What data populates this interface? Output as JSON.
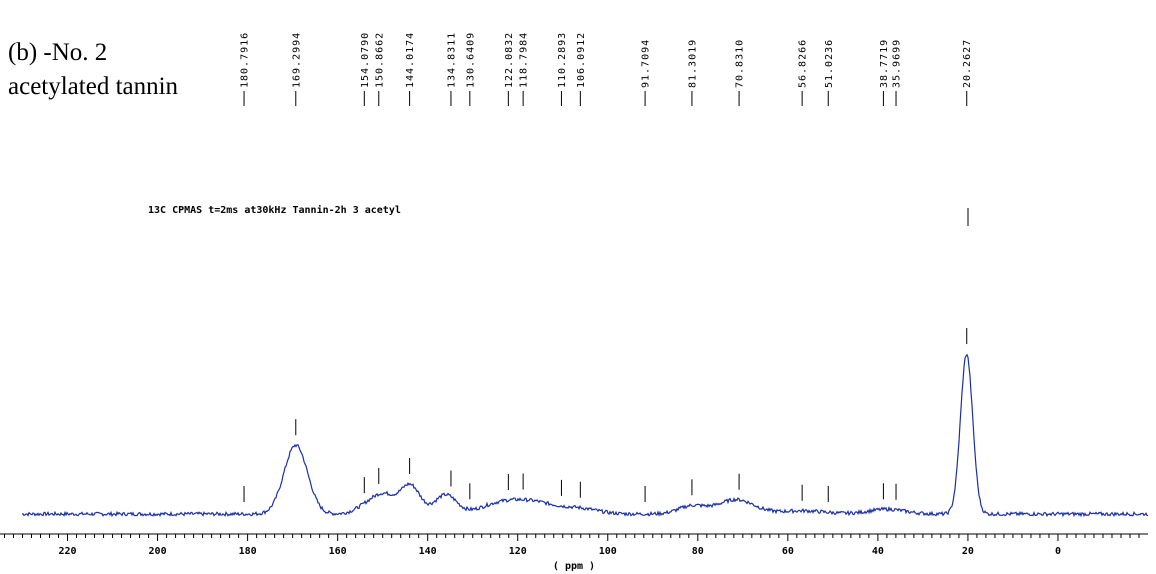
{
  "figure": {
    "caption_line1": "(b) -No. 2",
    "caption_line2": "acetylated tannin"
  },
  "chart_data": {
    "type": "line",
    "title": "13C CPMAS t=2ms at30kHz Tannin-2h 3 acetyl",
    "xlabel": "( ppm )",
    "ylabel": "",
    "xlim": [
      235,
      -20
    ],
    "x_reversed": true,
    "ylim": [
      0,
      1
    ],
    "grid": false,
    "line_color": "#1b2fa8",
    "x_ticks": [
      220,
      200,
      180,
      160,
      140,
      120,
      100,
      80,
      60,
      40,
      20,
      0
    ],
    "x_tick_labels": [
      "220",
      "200",
      "180",
      "160",
      "140",
      "120",
      "100",
      "80",
      "60",
      "40",
      "20",
      "0"
    ],
    "peak_labels": [
      {
        "ppm": 180.7916,
        "label": "180.7916"
      },
      {
        "ppm": 169.2994,
        "label": "169.2994"
      },
      {
        "ppm": 154.079,
        "label": "154.0790"
      },
      {
        "ppm": 150.8662,
        "label": "150.8662"
      },
      {
        "ppm": 144.0174,
        "label": "144.0174"
      },
      {
        "ppm": 134.8311,
        "label": "134.8311"
      },
      {
        "ppm": 130.6409,
        "label": "130.6409"
      },
      {
        "ppm": 122.0832,
        "label": "122.0832"
      },
      {
        "ppm": 118.7984,
        "label": "118.7984"
      },
      {
        "ppm": 110.2893,
        "label": "110.2893"
      },
      {
        "ppm": 106.0912,
        "label": "106.0912"
      },
      {
        "ppm": 91.7094,
        "label": "91.7094"
      },
      {
        "ppm": 81.3019,
        "label": "81.3019"
      },
      {
        "ppm": 70.831,
        "label": "70.8310"
      },
      {
        "ppm": 56.8266,
        "label": "56.8266"
      },
      {
        "ppm": 51.0236,
        "label": "51.0236"
      },
      {
        "ppm": 38.7719,
        "label": "38.7719"
      },
      {
        "ppm": 35.9699,
        "label": "35.9699"
      },
      {
        "ppm": 20.2627,
        "label": "20.2627"
      }
    ],
    "peaks": [
      {
        "ppm": 169.3,
        "height": 0.43,
        "width": 2.6
      },
      {
        "ppm": 153.5,
        "height": 0.05,
        "width": 2.5
      },
      {
        "ppm": 149.6,
        "height": 0.11,
        "width": 2.4
      },
      {
        "ppm": 143.9,
        "height": 0.18,
        "width": 2.2
      },
      {
        "ppm": 136.0,
        "height": 0.12,
        "width": 2.4
      },
      {
        "ppm": 125.0,
        "height": 0.04,
        "width": 4.0
      },
      {
        "ppm": 117.5,
        "height": 0.08,
        "width": 5.5
      },
      {
        "ppm": 106.0,
        "height": 0.03,
        "width": 4.0
      },
      {
        "ppm": 81.3,
        "height": 0.05,
        "width": 3.0
      },
      {
        "ppm": 71.5,
        "height": 0.09,
        "width": 4.0
      },
      {
        "ppm": 56.8,
        "height": 0.02,
        "width": 5.0
      },
      {
        "ppm": 38.0,
        "height": 0.03,
        "width": 4.0
      },
      {
        "ppm": 20.3,
        "height": 1.0,
        "width": 1.35
      }
    ]
  }
}
